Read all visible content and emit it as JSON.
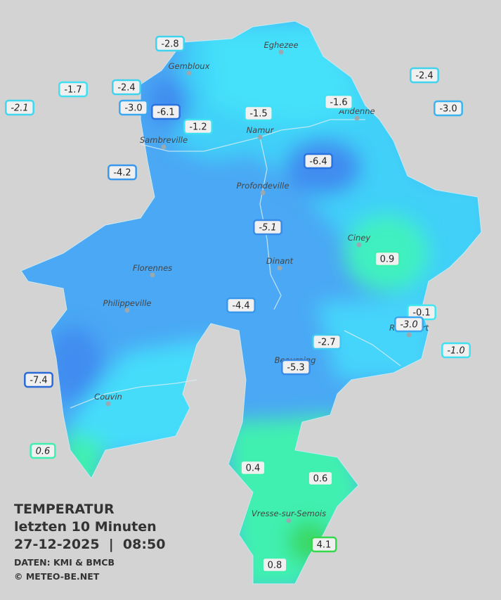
{
  "legend": {
    "title": "TEMPERATUR",
    "period": "letzten 10 Minuten",
    "datetime": "27-12-2025  |  08:50",
    "source": "DATEN: KMI & BMCB",
    "copyright": "© METEO-BE.NET"
  },
  "towns": [
    {
      "name": "Eghezee"
    },
    {
      "name": "Gembloux"
    },
    {
      "name": "Andenne"
    },
    {
      "name": "Namur"
    },
    {
      "name": "Sambreville"
    },
    {
      "name": "Profondeville"
    },
    {
      "name": "Ciney"
    },
    {
      "name": "Dinant"
    },
    {
      "name": "Florennes"
    },
    {
      "name": "Philippeville"
    },
    {
      "name": "Rochefort"
    },
    {
      "name": "Beauraing"
    },
    {
      "name": "Couvin"
    },
    {
      "name": "Vresse-sur-Semois"
    }
  ],
  "stations": [
    {
      "label": "-2.8",
      "color": "#3fd3ee",
      "italic": false
    },
    {
      "label": "-1.7",
      "color": "#3fe0f2",
      "italic": false
    },
    {
      "label": "-2.1",
      "color": "#3fd8f0",
      "italic": true
    },
    {
      "label": "-2.4",
      "color": "#3fd3ee",
      "italic": false
    },
    {
      "label": "-3.0",
      "color": "#3aa8f0",
      "italic": false
    },
    {
      "label": "-6.1",
      "color": "#2a72de",
      "italic": false
    },
    {
      "label": "-1.2",
      "color": "#3fe0f2",
      "italic": false
    },
    {
      "label": "-1.5",
      "color": "#3fe0f2",
      "italic": false
    },
    {
      "label": "-1.6",
      "color": "#3fe0f2",
      "italic": false
    },
    {
      "label": "-2.4",
      "color": "#3fd3ee",
      "italic": false
    },
    {
      "label": "-3.0",
      "color": "#3ab4f0",
      "italic": false
    },
    {
      "label": "-4.2",
      "color": "#3a98ec",
      "italic": false
    },
    {
      "label": "-6.4",
      "color": "#2a72de",
      "italic": false
    },
    {
      "label": "-5.1",
      "color": "#3a8ae8",
      "italic": true
    },
    {
      "label": "0.9",
      "color": "#3ef0b0",
      "italic": false
    },
    {
      "label": "-0.1",
      "color": "#3fe8f0",
      "italic": false
    },
    {
      "label": "-3.0",
      "color": "#3aa8f0",
      "italic": true
    },
    {
      "label": "-1.0",
      "color": "#3fe0f2",
      "italic": true
    },
    {
      "label": "-4.4",
      "color": "#3a98ec",
      "italic": false
    },
    {
      "label": "-2.7",
      "color": "#3fc8f0",
      "italic": false
    },
    {
      "label": "-5.3",
      "color": "#3a8ae8",
      "italic": false
    },
    {
      "label": "-7.4",
      "color": "#2a6ad8",
      "italic": false
    },
    {
      "label": "0.6",
      "color": "#3ef0b0",
      "italic": true
    },
    {
      "label": "0.4",
      "color": "#3ef0b0",
      "italic": false
    },
    {
      "label": "0.6",
      "color": "#3ef0b0",
      "italic": false
    },
    {
      "label": "4.1",
      "color": "#34d84a",
      "italic": false
    },
    {
      "label": "0.8",
      "color": "#3ef0b0",
      "italic": false
    }
  ]
}
